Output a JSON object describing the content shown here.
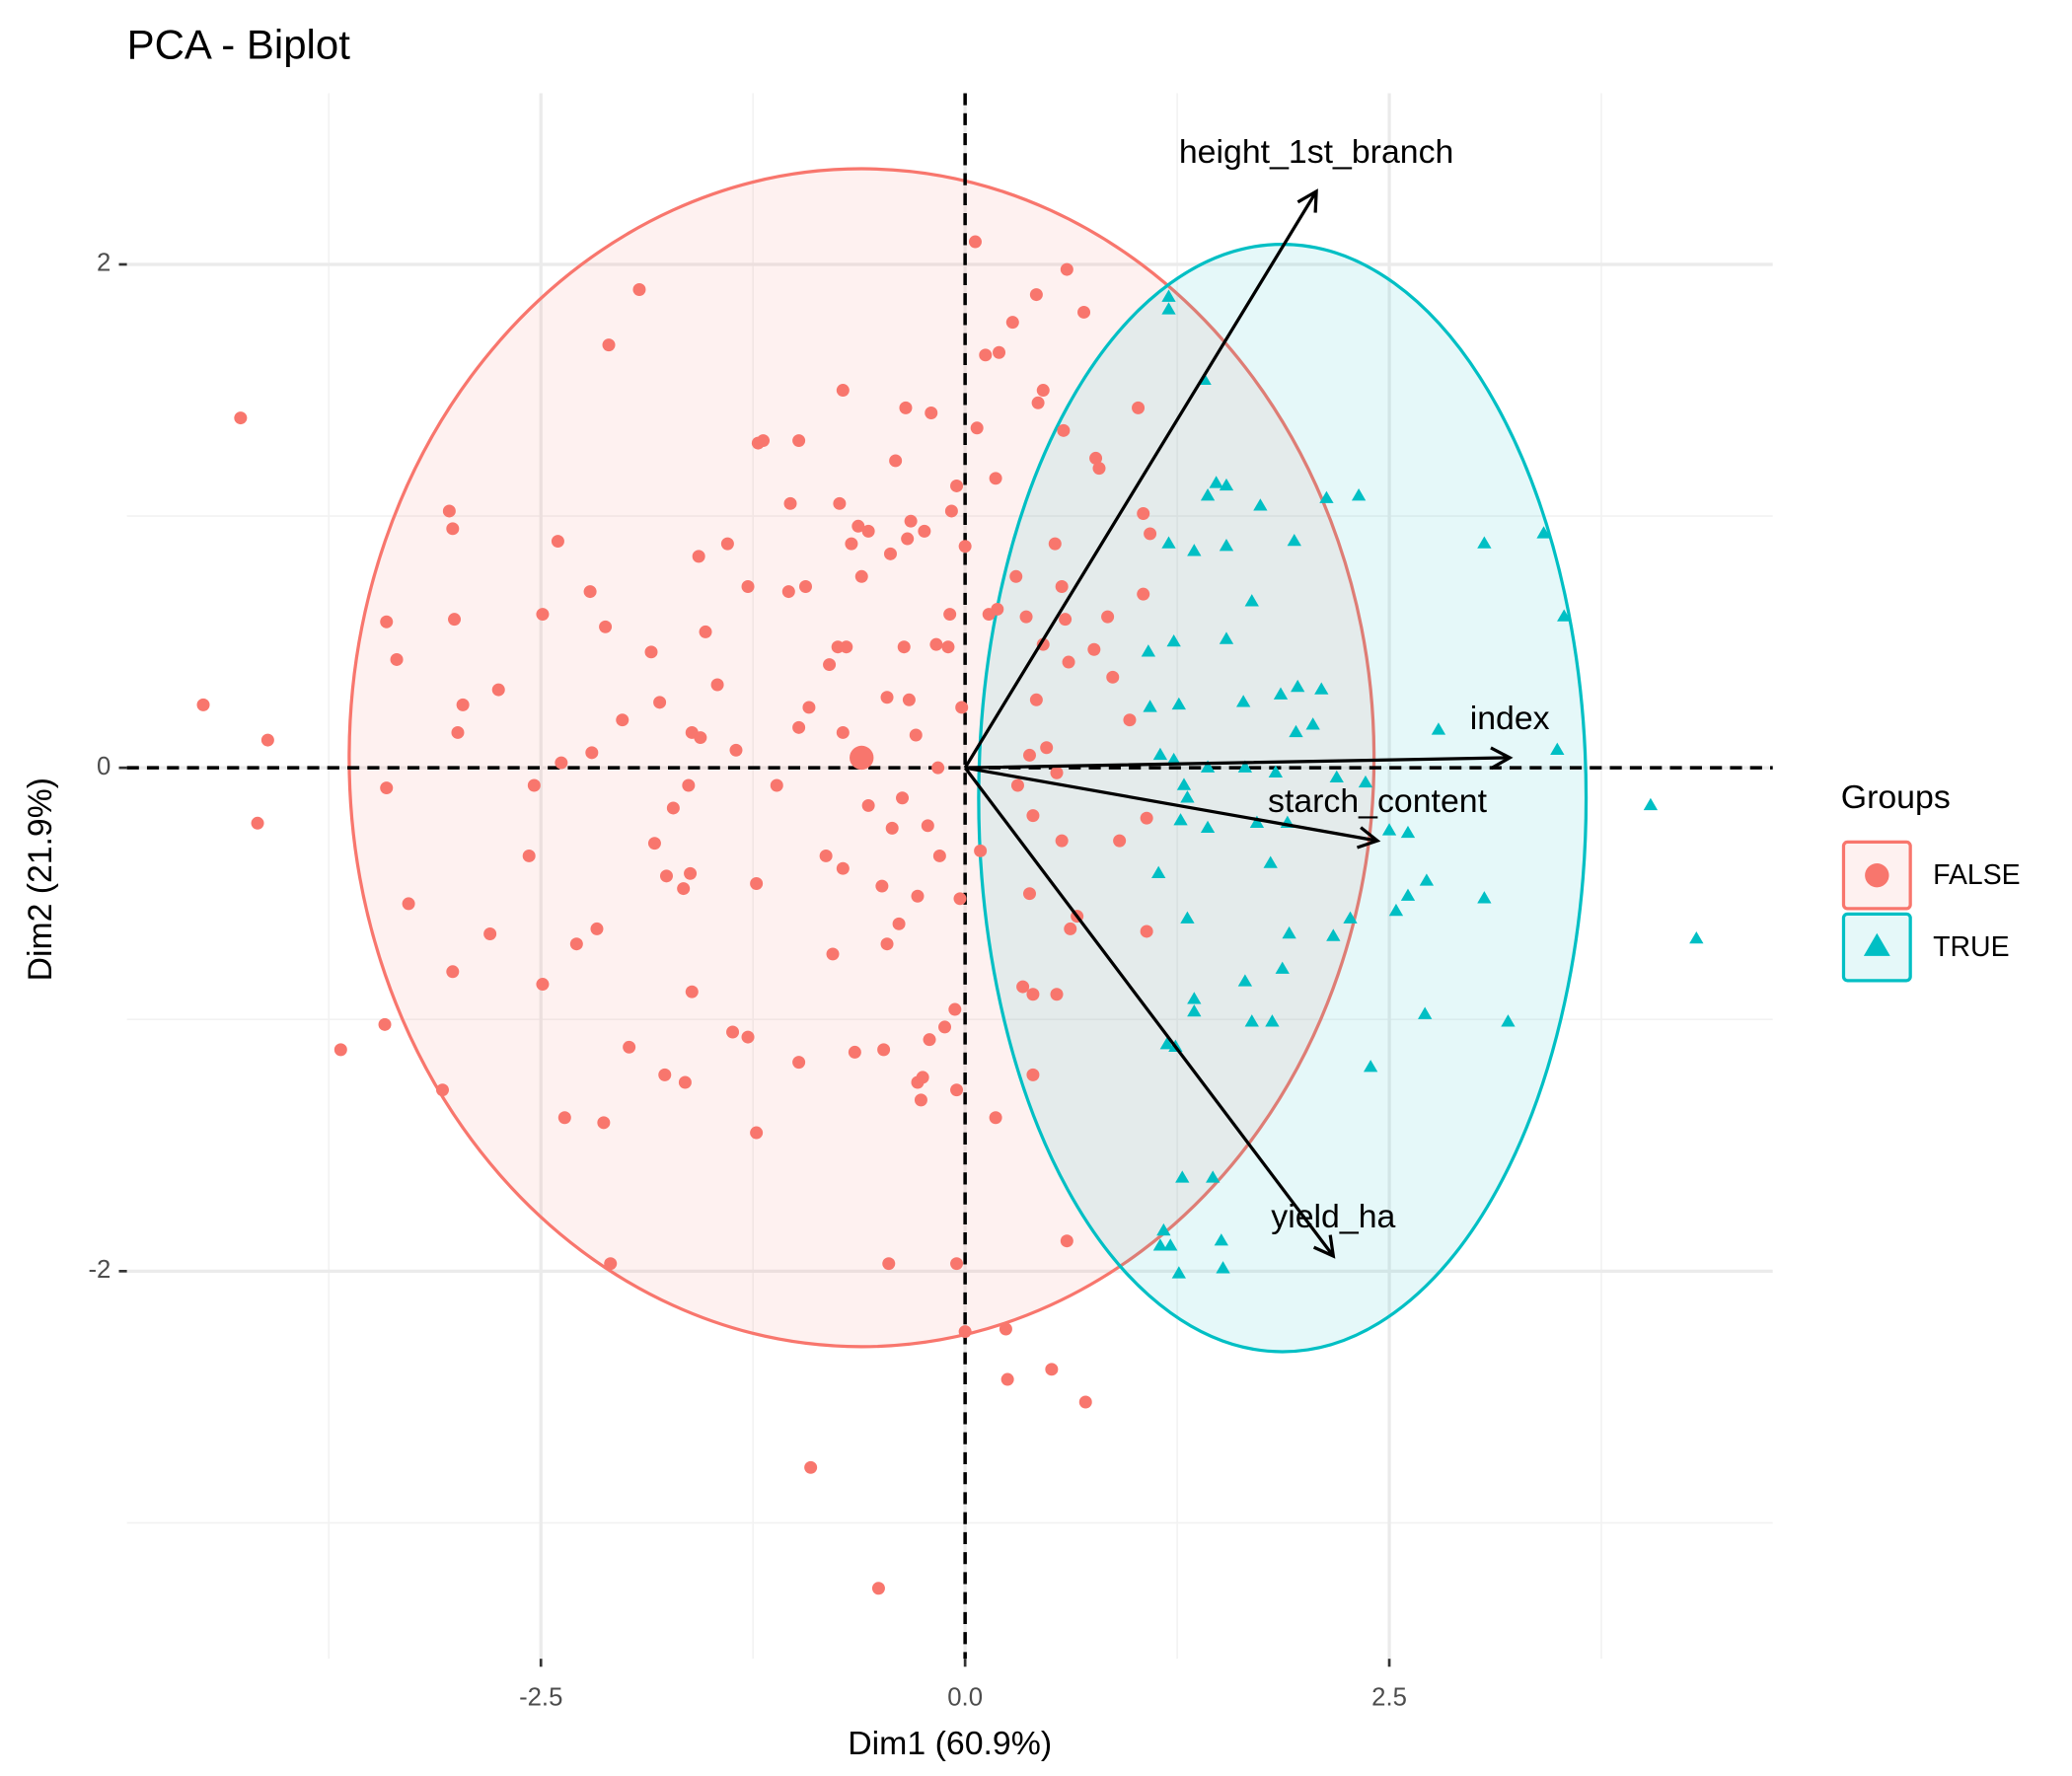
{
  "chart_data": {
    "type": "scatter",
    "title": "PCA - Biplot",
    "xlabel": "Dim1 (60.9%)",
    "ylabel": "Dim2 (21.9%)",
    "xlim": [
      -4.94,
      4.76
    ],
    "ylim": [
      -3.54,
      2.68
    ],
    "xticks": [
      {
        "value": -2.5,
        "label": "-2.5"
      },
      {
        "value": 0,
        "label": "0.0"
      },
      {
        "value": 2.5,
        "label": "2.5"
      }
    ],
    "yticks": [
      -2,
      0,
      2
    ],
    "grid": true,
    "legend_title": "Groups",
    "legend_position": "right",
    "series": [
      {
        "name": "FALSE",
        "color": "#F8766D",
        "marker": "circle",
        "x": [
          -4.27,
          -4.49,
          -4.11,
          -4.17,
          -3.68,
          -3.41,
          -3.35,
          -3.41,
          -3.42,
          -3.28,
          -3.08,
          -3.04,
          -3.02,
          -3.01,
          -3.02,
          -2.99,
          -2.96,
          -2.8,
          -2.75,
          -2.57,
          -2.54,
          -2.49,
          -2.49,
          -2.4,
          -2.38,
          -2.36,
          -2.29,
          -2.21,
          -2.2,
          -2.17,
          -2.13,
          -2.12,
          -2.1,
          -2.09,
          -2.02,
          -1.98,
          -1.92,
          -1.85,
          -1.83,
          -1.8,
          -1.77,
          -1.76,
          -1.72,
          -1.65,
          -1.66,
          -1.63,
          -1.62,
          -1.61,
          -1.61,
          -1.57,
          -1.56,
          -1.53,
          -1.46,
          -1.4,
          -1.37,
          -1.35,
          -1.28,
          -1.28,
          -1.23,
          -1.23,
          -1.22,
          -1.19,
          -1.11,
          -1.04,
          -1.03,
          -0.98,
          -0.98,
          -0.98,
          -0.94,
          -0.92,
          -0.91,
          -0.82,
          -0.8,
          -0.78,
          -0.74,
          -0.75,
          -0.72,
          -0.72,
          -0.72,
          -0.7,
          -0.67,
          -0.65,
          -0.63,
          -0.61,
          -0.57,
          -0.57,
          -0.51,
          -0.49,
          -0.48,
          -0.45,
          -0.46,
          -0.44,
          -0.46,
          -0.43,
          -0.41,
          -0.39,
          -0.36,
          -0.37,
          -0.35,
          -0.34,
          -0.32,
          -0.33,
          -0.29,
          -0.28,
          -0.28,
          -0.26,
          -0.25,
          -0.24,
          -0.22,
          -0.21,
          -0.2,
          -0.17,
          -0.16,
          -0.15,
          -0.12,
          -0.1,
          -0.09,
          -0.08,
          -0.06,
          -0.05,
          -0.05,
          -0.05,
          -0.03,
          -0.02,
          0,
          0,
          0.06,
          0.07,
          0.12,
          0.18,
          0.2,
          0.14,
          0.19,
          0.18,
          0.24,
          0.25,
          0.28,
          0.31,
          0.3,
          0.36,
          0.38,
          0.4,
          0.42,
          0.43,
          0.46,
          0.51,
          0.53,
          0.54,
          0.57,
          0.58,
          0.59,
          0.6,
          0.61,
          0.62,
          0.66,
          0.7,
          0.71,
          0.77,
          0.76,
          0.79,
          0.84,
          0.87,
          0.91,
          0.97,
          1.02,
          1.05,
          1.05,
          1.07,
          1.09,
          1.07,
          0.4,
          0.34,
          0.48,
          0.54,
          0.57,
          0.4,
          0.42,
          0.46,
          0.6,
          0.09,
          0.38
        ],
        "y": [
          1.39,
          0.25,
          0.11,
          -0.22,
          -1.12,
          0.58,
          0.43,
          -0.08,
          -1.02,
          -0.54,
          -1.28,
          1.02,
          0.95,
          0.59,
          -0.81,
          0.14,
          0.25,
          -0.66,
          0.31,
          -0.35,
          -0.07,
          0.61,
          -0.86,
          0.9,
          0.02,
          -1.39,
          -0.7,
          0.7,
          0.06,
          -0.64,
          -1.41,
          0.56,
          1.68,
          -1.97,
          0.19,
          -1.11,
          1.9,
          0.46,
          -0.3,
          0.26,
          -1.22,
          -0.43,
          -0.16,
          -1.25,
          -0.48,
          -0.07,
          -0.42,
          -0.89,
          0.14,
          0.84,
          0.12,
          0.54,
          0.33,
          0.89,
          -1.05,
          0.07,
          0.72,
          -1.07,
          -0.46,
          -1.45,
          1.29,
          1.3,
          -0.07,
          0.7,
          1.05,
          -1.17,
          1.3,
          0.16,
          0.72,
          0.24,
          -2.78,
          -0.35,
          0.41,
          -0.74,
          1.05,
          0.48,
          1.5,
          -0.4,
          0.14,
          0.48,
          0.89,
          -1.13,
          0.96,
          0.76,
          0.94,
          -0.15,
          -3.26,
          -0.47,
          -1.12,
          -1.97,
          -0.7,
          0.85,
          0.28,
          -0.24,
          1.22,
          -0.62,
          0.48,
          -0.12,
          1.43,
          0.91,
          0.98,
          0.27,
          0.13,
          -1.25,
          -0.51,
          -1.32,
          -1.23,
          0.94,
          -0.23,
          -1.08,
          1.41,
          0.49,
          0,
          -0.35,
          -1.03,
          0.48,
          0.61,
          1.02,
          -0.96,
          1.12,
          -1.97,
          -1.28,
          -0.52,
          0.24,
          0.88,
          -2.24,
          2.09,
          1.35,
          1.64,
          1.15,
          1.65,
          0.61,
          0.63,
          -1.39,
          -2.23,
          -2.43,
          1.77,
          -0.07,
          0.76,
          0.6,
          0.05,
          -0.9,
          1.88,
          1.45,
          1.5,
          -2.39,
          0.89,
          -0.9,
          0.72,
          1.34,
          0.59,
          1.98,
          0.42,
          -0.64,
          -0.59,
          1.81,
          -2.52,
          1.23,
          0.47,
          1.19,
          0.6,
          0.36,
          -0.29,
          0.19,
          1.43,
          0.69,
          1.01,
          -0.65,
          0.93,
          -0.2,
          -1.22,
          -0.87,
          0.08,
          -0.02,
          -0.29,
          -0.19,
          0.27,
          0.49,
          -1.88,
          -0.33,
          -0.5
        ],
        "mean": {
          "x": -0.61,
          "y": 0.04
        },
        "ellipse": {
          "center": [
            -0.61,
            0.04
          ],
          "radii": [
            3.02,
            2.34
          ]
        }
      },
      {
        "name": "TRUE",
        "color": "#00BFC4",
        "marker": "triangle",
        "x": [
          1.2,
          1.2,
          1.41,
          1.48,
          1.54,
          1.43,
          1.74,
          2.13,
          2.32,
          1.94,
          1.54,
          1.2,
          1.35,
          3.06,
          3.41,
          3.53,
          1.69,
          1.54,
          1.23,
          1.08,
          1.09,
          1.26,
          1.64,
          1.86,
          1.96,
          2.1,
          1.95,
          2.05,
          2.79,
          3.49,
          1.15,
          1.23,
          1.43,
          1.65,
          1.83,
          2.19,
          2.36,
          1.29,
          1.31,
          1.27,
          1.43,
          1.72,
          1.9,
          2.5,
          2.61,
          4.04,
          1.14,
          1.8,
          2.61,
          2.72,
          2.54,
          2.27,
          2.17,
          1.31,
          1.91,
          1.87,
          1.65,
          1.35,
          1.35,
          1.69,
          1.81,
          2.71,
          3.2,
          2.39,
          1.19,
          1.24,
          1.28,
          1.46,
          1.17,
          1.21,
          1.51,
          1.15,
          1.26,
          1.52,
          4.31,
          3.06
        ],
        "y": [
          1.87,
          1.82,
          1.54,
          1.13,
          1.12,
          1.08,
          1.04,
          1.07,
          1.08,
          0.9,
          0.88,
          0.89,
          0.86,
          0.89,
          0.93,
          0.6,
          0.66,
          0.51,
          0.5,
          0.46,
          0.24,
          0.25,
          0.26,
          0.29,
          0.32,
          0.31,
          0.14,
          0.17,
          0.15,
          0.07,
          0.05,
          0.03,
          0,
          0,
          -0.02,
          -0.04,
          -0.06,
          -0.07,
          -0.12,
          -0.21,
          -0.24,
          -0.22,
          -0.22,
          -0.25,
          -0.26,
          -0.15,
          -0.42,
          -0.38,
          -0.51,
          -0.45,
          -0.57,
          -0.6,
          -0.67,
          -0.6,
          -0.66,
          -0.8,
          -0.85,
          -0.92,
          -0.97,
          -1.01,
          -1.01,
          -0.98,
          -1.01,
          -1.19,
          -1.1,
          -1.11,
          -1.63,
          -1.63,
          -1.84,
          -1.9,
          -1.88,
          -1.9,
          -2.01,
          -1.99,
          -0.68,
          -0.52
        ],
        "ellipse": {
          "center": [
            1.87,
            -0.12
          ],
          "radii": [
            1.79,
            2.2
          ]
        }
      }
    ],
    "variables": [
      {
        "name": "height_1st_branch",
        "x": 2.07,
        "y": 2.29
      },
      {
        "name": "index",
        "x": 3.21,
        "y": 0.04
      },
      {
        "name": "starch_content",
        "x": 2.43,
        "y": -0.29
      },
      {
        "name": "yield_ha",
        "x": 2.17,
        "y": -1.94
      }
    ]
  }
}
